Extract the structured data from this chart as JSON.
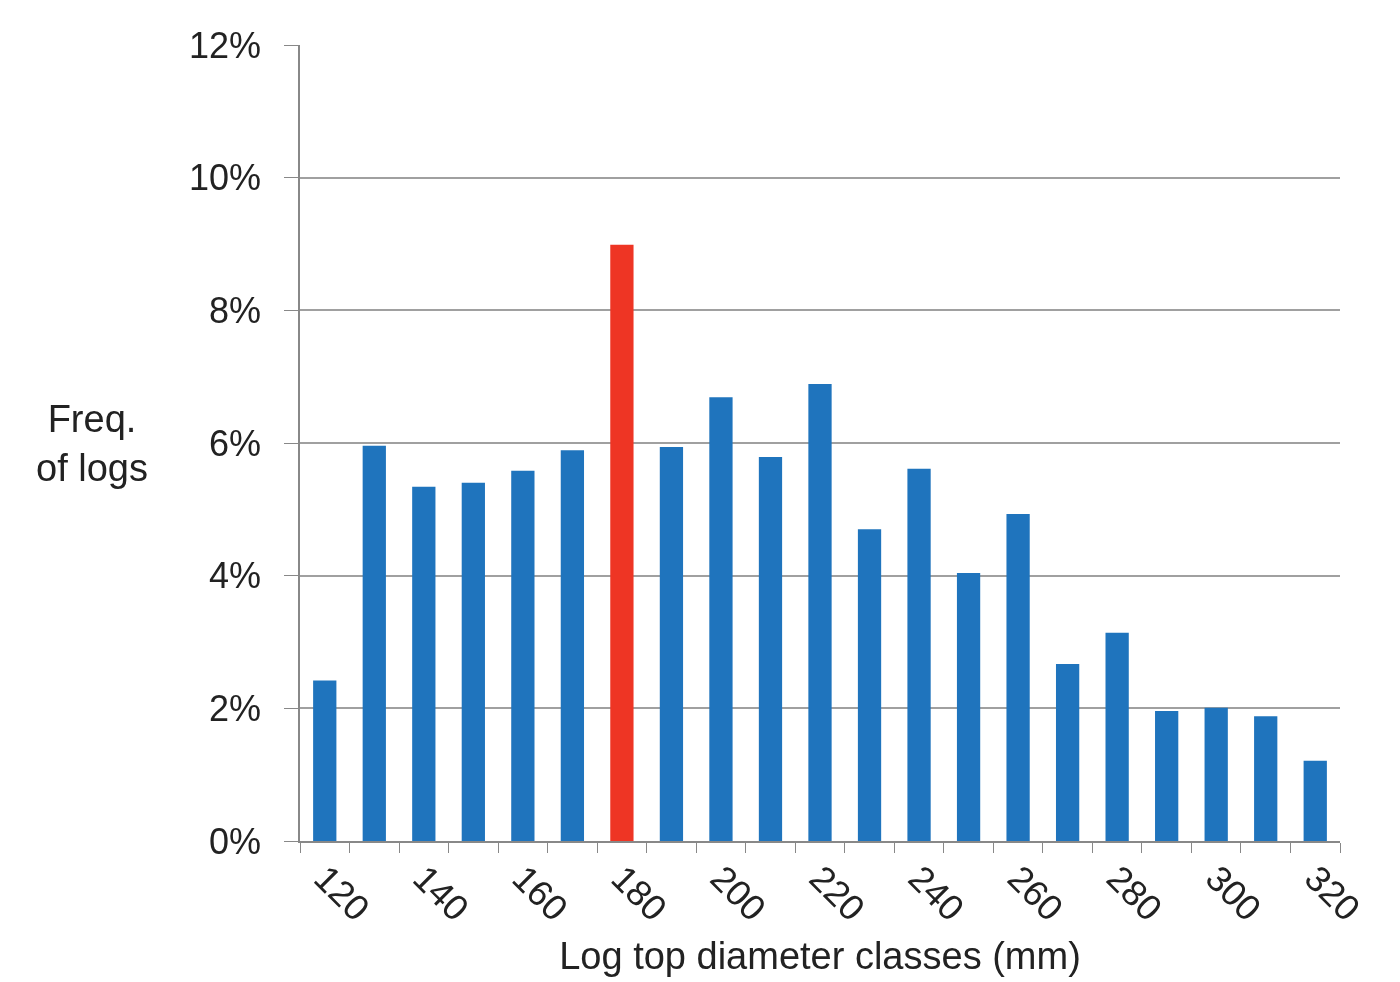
{
  "chart_data": {
    "type": "bar",
    "xlabel": "Log top diameter classes (mm)",
    "ylabel": "Freq.\nof logs",
    "categories": [
      "120",
      null,
      "140",
      null,
      "160",
      null,
      "180",
      null,
      "200",
      null,
      "220",
      null,
      "240",
      null,
      "260",
      null,
      "280",
      null,
      "300",
      null,
      "320"
    ],
    "values": [
      2.42,
      5.96,
      5.34,
      5.4,
      5.58,
      5.89,
      8.99,
      5.94,
      6.69,
      5.79,
      6.89,
      4.7,
      5.61,
      4.04,
      4.93,
      2.67,
      3.14,
      1.96,
      2.01,
      1.88,
      1.21
    ],
    "colors": [
      "#1f74bd",
      "#1f74bd",
      "#1f74bd",
      "#1f74bd",
      "#1f74bd",
      "#1f74bd",
      "#ee3524",
      "#1f74bd",
      "#1f74bd",
      "#1f74bd",
      "#1f74bd",
      "#1f74bd",
      "#1f74bd",
      "#1f74bd",
      "#1f74bd",
      "#1f74bd",
      "#1f74bd",
      "#1f74bd",
      "#1f74bd",
      "#1f74bd",
      "#1f74bd"
    ],
    "ylim": [
      0,
      12
    ],
    "yticks": [
      {
        "value": 0,
        "label": "0%"
      },
      {
        "value": 2,
        "label": "2%"
      },
      {
        "value": 4,
        "label": "4%"
      },
      {
        "value": 6,
        "label": "6%"
      },
      {
        "value": 8,
        "label": "8%"
      },
      {
        "value": 10,
        "label": "10%"
      },
      {
        "value": 12,
        "label": "12%"
      }
    ],
    "grid": "y"
  }
}
